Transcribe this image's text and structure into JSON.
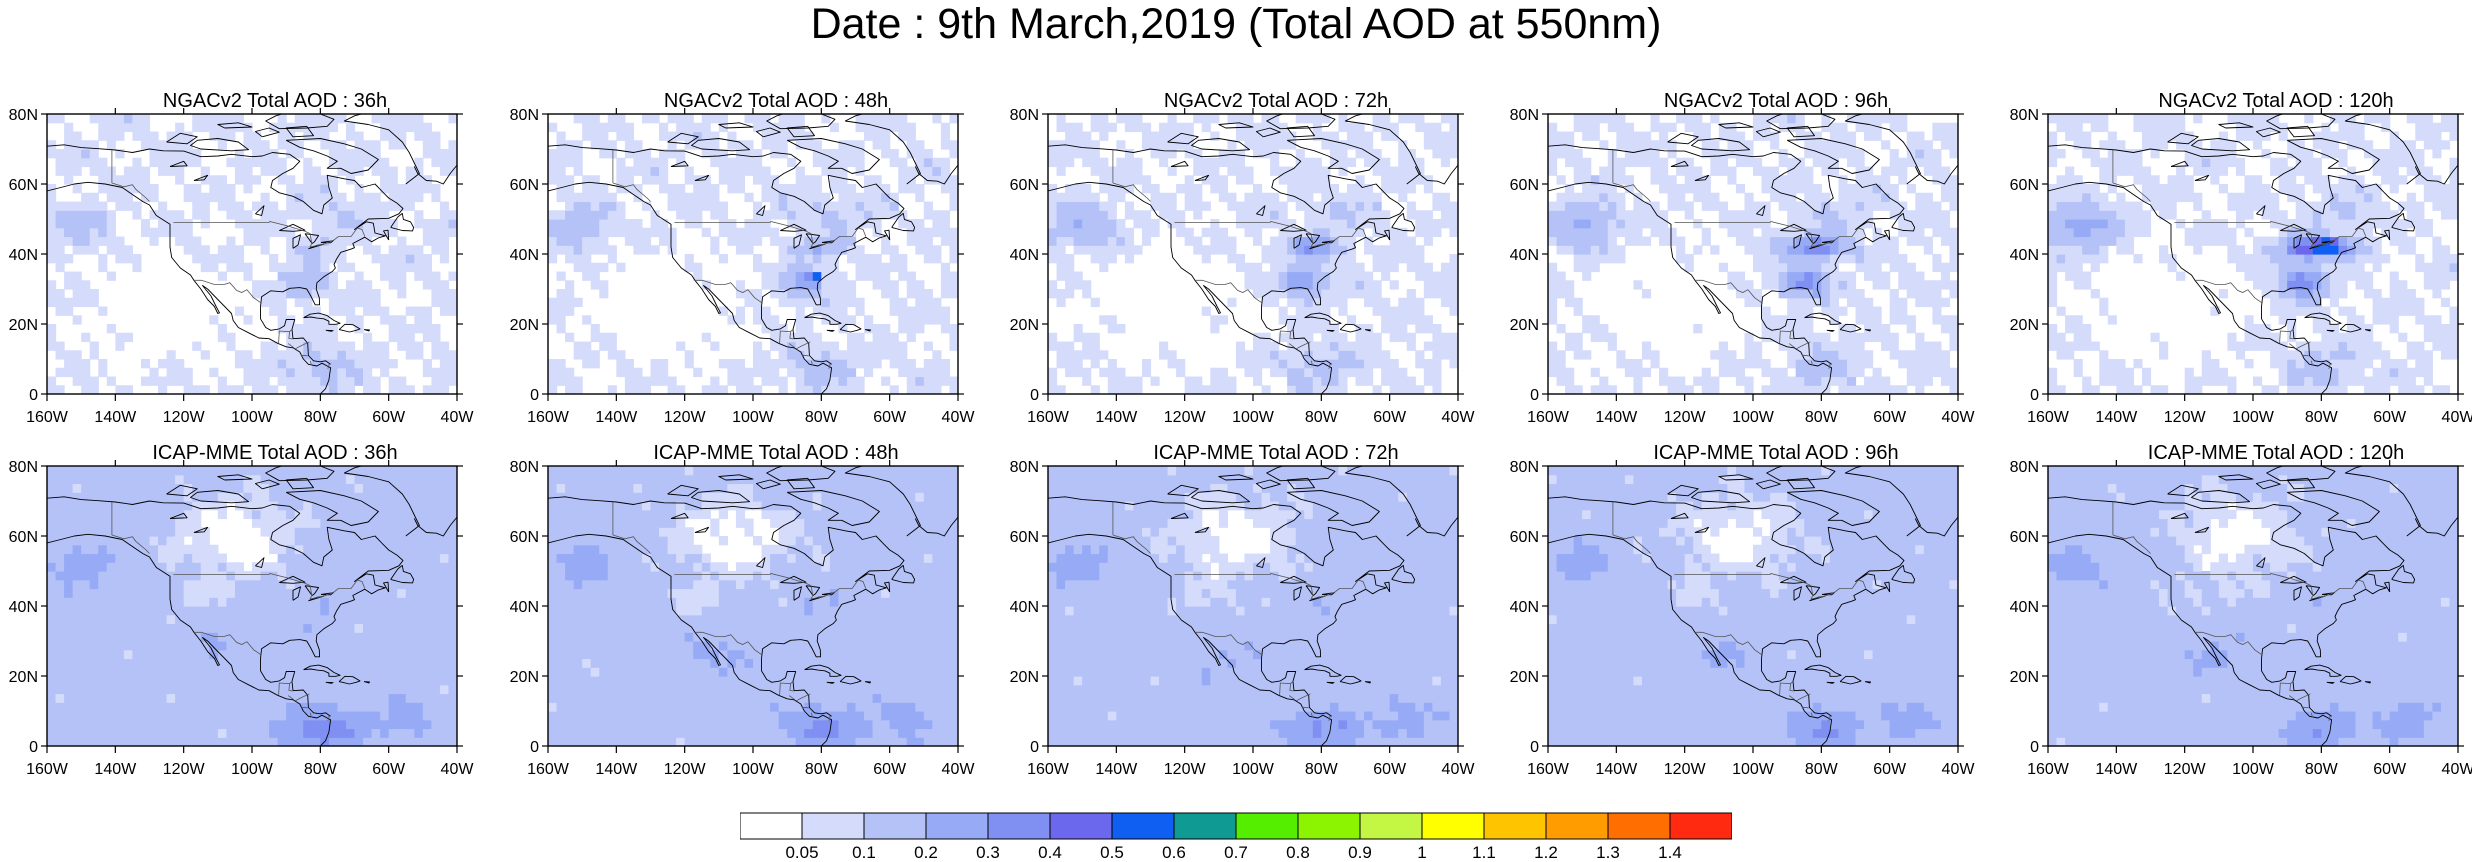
{
  "title": "Date : 9th March,2019 (Total AOD at 550nm)",
  "colors": {
    "land_line": "#000000",
    "frame": "#000000"
  },
  "map": {
    "lon_range": [
      -160,
      -40
    ],
    "lat_range": [
      0,
      80
    ],
    "x_ticks": [
      "160W",
      "140W",
      "120W",
      "100W",
      "80W",
      "60W",
      "40W"
    ],
    "y_ticks": [
      "0",
      "20N",
      "40N",
      "60N",
      "80N"
    ]
  },
  "panels": [
    {
      "title": "NGACv2 Total AOD : 36h",
      "model": "NGACv2",
      "lead": "36h"
    },
    {
      "title": "NGACv2 Total AOD : 48h",
      "model": "NGACv2",
      "lead": "48h"
    },
    {
      "title": "NGACv2 Total AOD : 72h",
      "model": "NGACv2",
      "lead": "72h"
    },
    {
      "title": "NGACv2 Total AOD : 96h",
      "model": "NGACv2",
      "lead": "96h"
    },
    {
      "title": "NGACv2 Total AOD : 120h",
      "model": "NGACv2",
      "lead": "120h"
    },
    {
      "title": "ICAP-MME Total AOD : 36h",
      "model": "ICAP-MME",
      "lead": "36h"
    },
    {
      "title": "ICAP-MME Total AOD : 48h",
      "model": "ICAP-MME",
      "lead": "48h"
    },
    {
      "title": "ICAP-MME Total AOD : 72h",
      "model": "ICAP-MME",
      "lead": "72h"
    },
    {
      "title": "ICAP-MME Total AOD : 96h",
      "model": "ICAP-MME",
      "lead": "96h"
    },
    {
      "title": "ICAP-MME Total AOD : 120h",
      "model": "ICAP-MME",
      "lead": "120h"
    }
  ],
  "colorbar": {
    "labels": [
      "0.05",
      "0.1",
      "0.2",
      "0.3",
      "0.4",
      "0.5",
      "0.6",
      "0.7",
      "0.8",
      "0.9",
      "1",
      "1.1",
      "1.2",
      "1.3",
      "1.4"
    ],
    "colors": [
      "#ffffff",
      "#d5dcfb",
      "#b4c2f8",
      "#97aaf6",
      "#7f8ff2",
      "#6c68ee",
      "#0f5ff2",
      "#109a94",
      "#55ee00",
      "#8cf400",
      "#c4f744",
      "#ffff00",
      "#ffc400",
      "#ff9d00",
      "#ff6e00",
      "#ff2a10"
    ]
  }
}
